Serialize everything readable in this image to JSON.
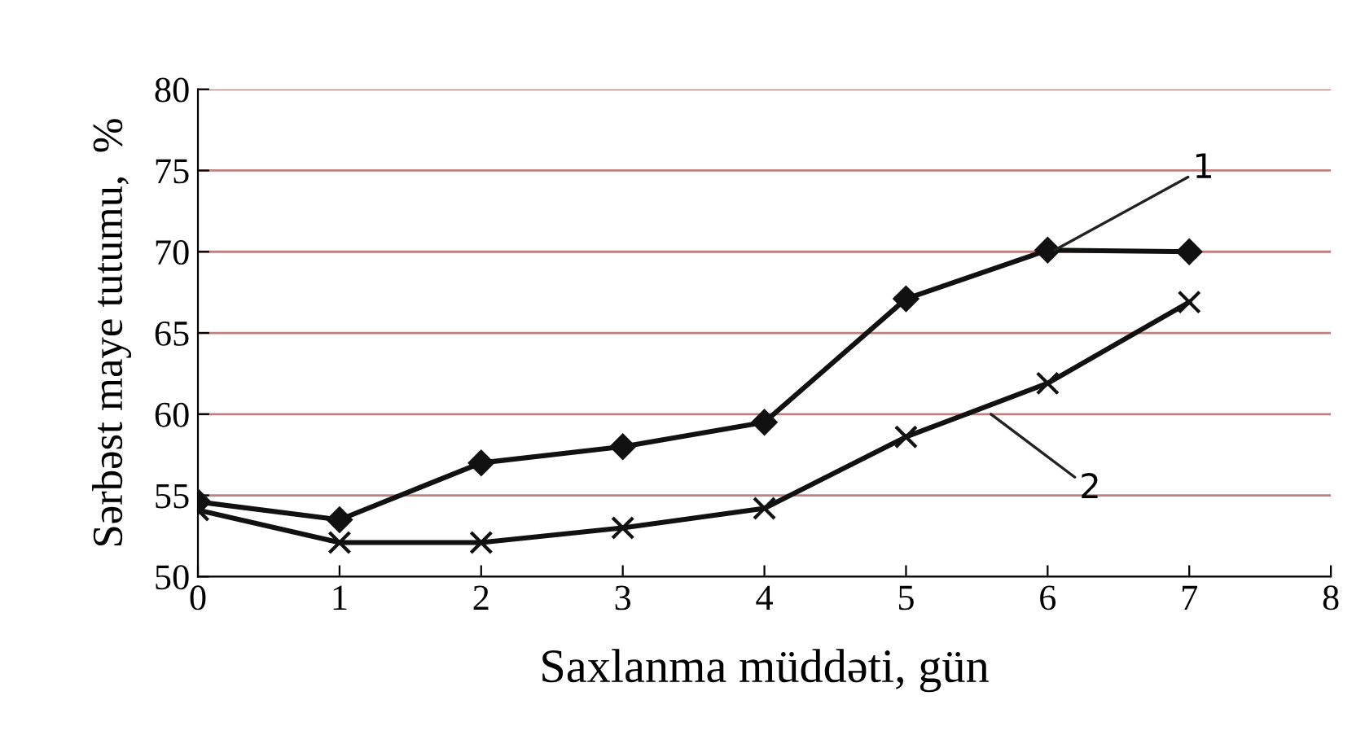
{
  "chart_data": {
    "type": "line",
    "xlabel": "Saxlanma müddəti, gün",
    "ylabel": "Sərbəst maye tutumu,  %",
    "x": [
      0,
      1,
      2,
      3,
      4,
      5,
      6,
      7
    ],
    "series": [
      {
        "name": "1",
        "color": "#111111",
        "marker": "diamond",
        "values": [
          54.6,
          53.5,
          57.0,
          58.0,
          59.5,
          67.1,
          70.1,
          70.0
        ]
      },
      {
        "name": "2",
        "color": "#111111",
        "marker": "cross",
        "values": [
          54.1,
          52.1,
          52.1,
          53.0,
          54.2,
          58.6,
          61.9,
          66.9
        ]
      }
    ],
    "xlim": [
      0,
      8
    ],
    "xticks": [
      0,
      1,
      2,
      3,
      4,
      5,
      6,
      7,
      8
    ],
    "ylim": [
      50,
      80
    ],
    "yticks": [
      50,
      55,
      60,
      65,
      70,
      75,
      80
    ],
    "grid": "y",
    "legend": false,
    "line_style": "solid"
  }
}
